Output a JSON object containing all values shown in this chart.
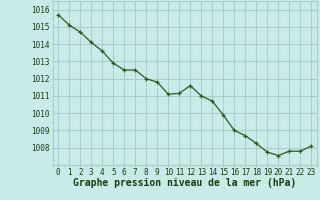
{
  "x": [
    0,
    1,
    2,
    3,
    4,
    5,
    6,
    7,
    8,
    9,
    10,
    11,
    12,
    13,
    14,
    15,
    16,
    17,
    18,
    19,
    20,
    21,
    22,
    23
  ],
  "y": [
    1015.7,
    1015.1,
    1014.7,
    1014.1,
    1013.6,
    1012.9,
    1012.5,
    1012.5,
    1012.0,
    1011.8,
    1011.1,
    1011.15,
    1011.6,
    1011.0,
    1010.7,
    1009.9,
    1009.0,
    1008.7,
    1008.25,
    1007.75,
    1007.55,
    1007.8,
    1007.8,
    1008.1
  ],
  "line_color": "#2d5a1b",
  "marker_color": "#2d5a1b",
  "bg_color": "#c8ebe8",
  "grid_color_major": "#aaccc8",
  "grid_color_minor": "#d4edea",
  "xlabel": "Graphe pression niveau de la mer (hPa)",
  "xlabel_color": "#1a3a10",
  "xlabel_fontsize": 7,
  "ytick_labels": [
    1008,
    1009,
    1010,
    1011,
    1012,
    1013,
    1014,
    1015,
    1016
  ],
  "ylim": [
    1007.3,
    1016.3
  ],
  "xlim": [
    -0.5,
    23.5
  ],
  "tick_fontsize": 5.5,
  "tick_color": "#1a3a10"
}
